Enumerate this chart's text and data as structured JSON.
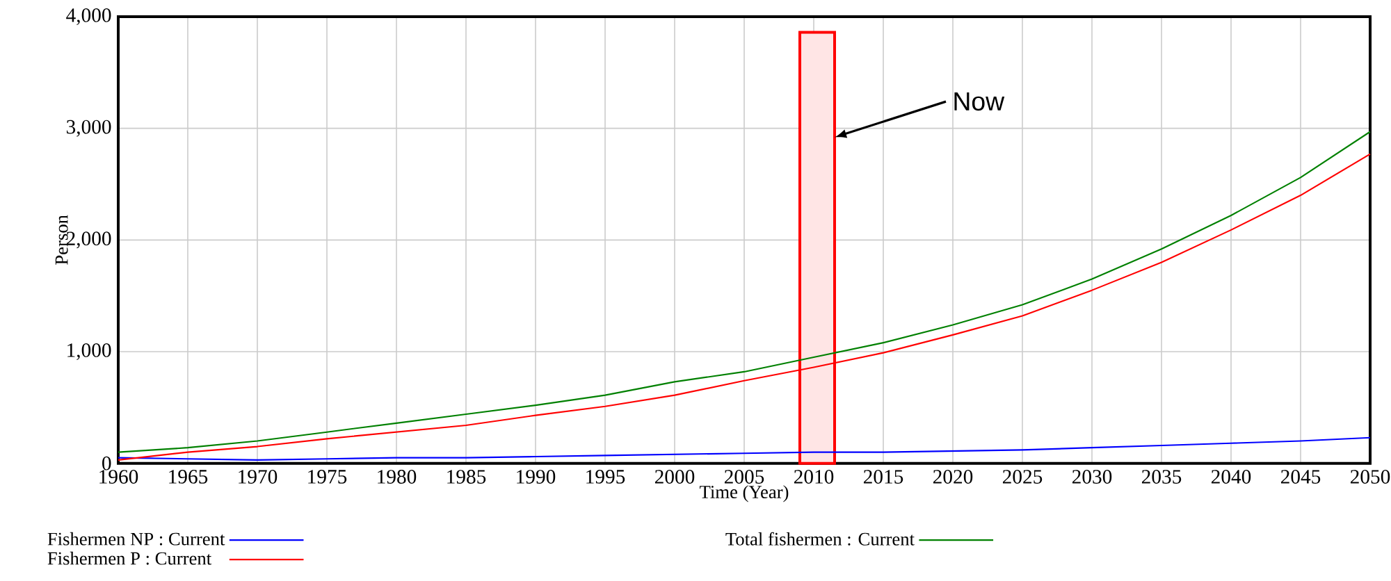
{
  "chart_data": {
    "type": "line",
    "xlabel": "Time (Year)",
    "ylabel": "Person",
    "x": [
      1960,
      1965,
      1970,
      1975,
      1980,
      1985,
      1990,
      1995,
      2000,
      2005,
      2010,
      2015,
      2020,
      2025,
      2030,
      2035,
      2040,
      2045,
      2050
    ],
    "series": [
      {
        "name": "Fishermen NP : Current",
        "color": "#0000ff",
        "values": [
          50,
          40,
          30,
          40,
          50,
          50,
          60,
          70,
          80,
          90,
          100,
          100,
          110,
          120,
          140,
          160,
          180,
          200,
          230
        ]
      },
      {
        "name": "Total fishermen : Current",
        "color": "#008000",
        "values": [
          100,
          140,
          200,
          280,
          360,
          440,
          520,
          610,
          730,
          820,
          950,
          1080,
          1240,
          1420,
          1650,
          1920,
          2220,
          2560,
          2970
        ]
      },
      {
        "name": "Fishermen P : Current",
        "color": "#ff0000",
        "values": [
          30,
          100,
          150,
          220,
          280,
          340,
          430,
          510,
          610,
          740,
          860,
          990,
          1150,
          1320,
          1550,
          1800,
          2090,
          2400,
          2770
        ]
      }
    ],
    "xlim": [
      1960,
      2050
    ],
    "ylim": [
      0,
      4000
    ],
    "xticks": [
      1960,
      1965,
      1970,
      1975,
      1980,
      1985,
      1990,
      1995,
      2000,
      2005,
      2010,
      2015,
      2020,
      2025,
      2030,
      2035,
      2040,
      2045,
      2050
    ],
    "yticks": [
      {
        "value": 0,
        "label": "0"
      },
      {
        "value": 1000,
        "label": "1,000"
      },
      {
        "value": 2000,
        "label": "2,000"
      },
      {
        "value": 3000,
        "label": "3,000"
      },
      {
        "value": 4000,
        "label": "4,000"
      }
    ],
    "bands": [
      {
        "axis": "x",
        "from": 2009,
        "to": 2011.5,
        "label": "Now",
        "color": "#ff0000"
      }
    ],
    "grid": true,
    "legend": "bottom",
    "line_style": "solid"
  }
}
